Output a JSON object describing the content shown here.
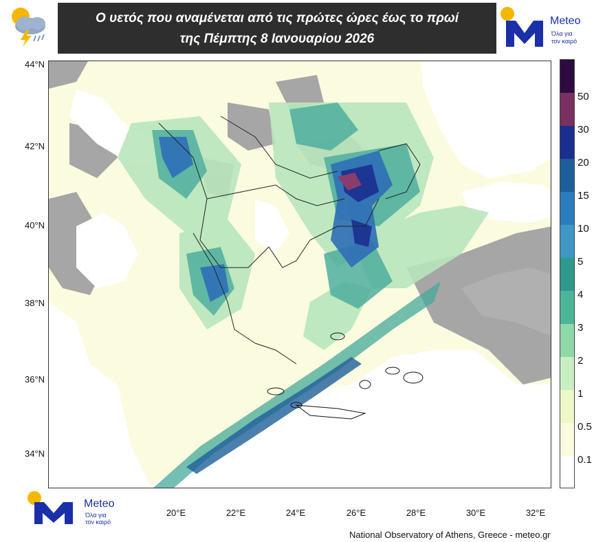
{
  "header": {
    "title_line1": "Ο υετός που αναμένεται από τις πρώτες ώρες έως το πρωί",
    "title_line2": "της Πέμπτης 8 Ιανουαρίου 2026"
  },
  "logo": {
    "brand": "Meteo",
    "tagline_line1": "Όλα για",
    "tagline_line2": "τον καιρό"
  },
  "axes": {
    "lat_labels": [
      "44°N",
      "42°N",
      "40°N",
      "38°N",
      "36°N",
      "34°N"
    ],
    "lon_labels": [
      "20°E",
      "22°E",
      "24°E",
      "26°E",
      "28°E",
      "30°E",
      "32°E"
    ]
  },
  "legend": {
    "levels": [
      "50",
      "30",
      "20",
      "15",
      "10",
      "5",
      "4",
      "3",
      "2",
      "1",
      "0.5",
      "0.1"
    ],
    "colors": [
      "#2d0a40",
      "#7a3060",
      "#1b2f8f",
      "#1e5f9a",
      "#2c7dbd",
      "#3d98c6",
      "#2f9a8c",
      "#4bb598",
      "#8fd8a8",
      "#c9eec2",
      "#eef7c8",
      "#fbfbe0",
      "#ffffff"
    ]
  },
  "map_colors": {
    "land_gray": "#a6a6a6",
    "sea_white": "#ffffff",
    "light_precip": "#eef7c8",
    "green_precip": "#9fdcb0",
    "teal_precip": "#46a89a",
    "blue_precip": "#2c6db5",
    "dark_blue_precip": "#1b2f8f",
    "max_precip": "#8a3c6a"
  },
  "credit": "National Observatory of Athens, Greece - meteo.gr"
}
